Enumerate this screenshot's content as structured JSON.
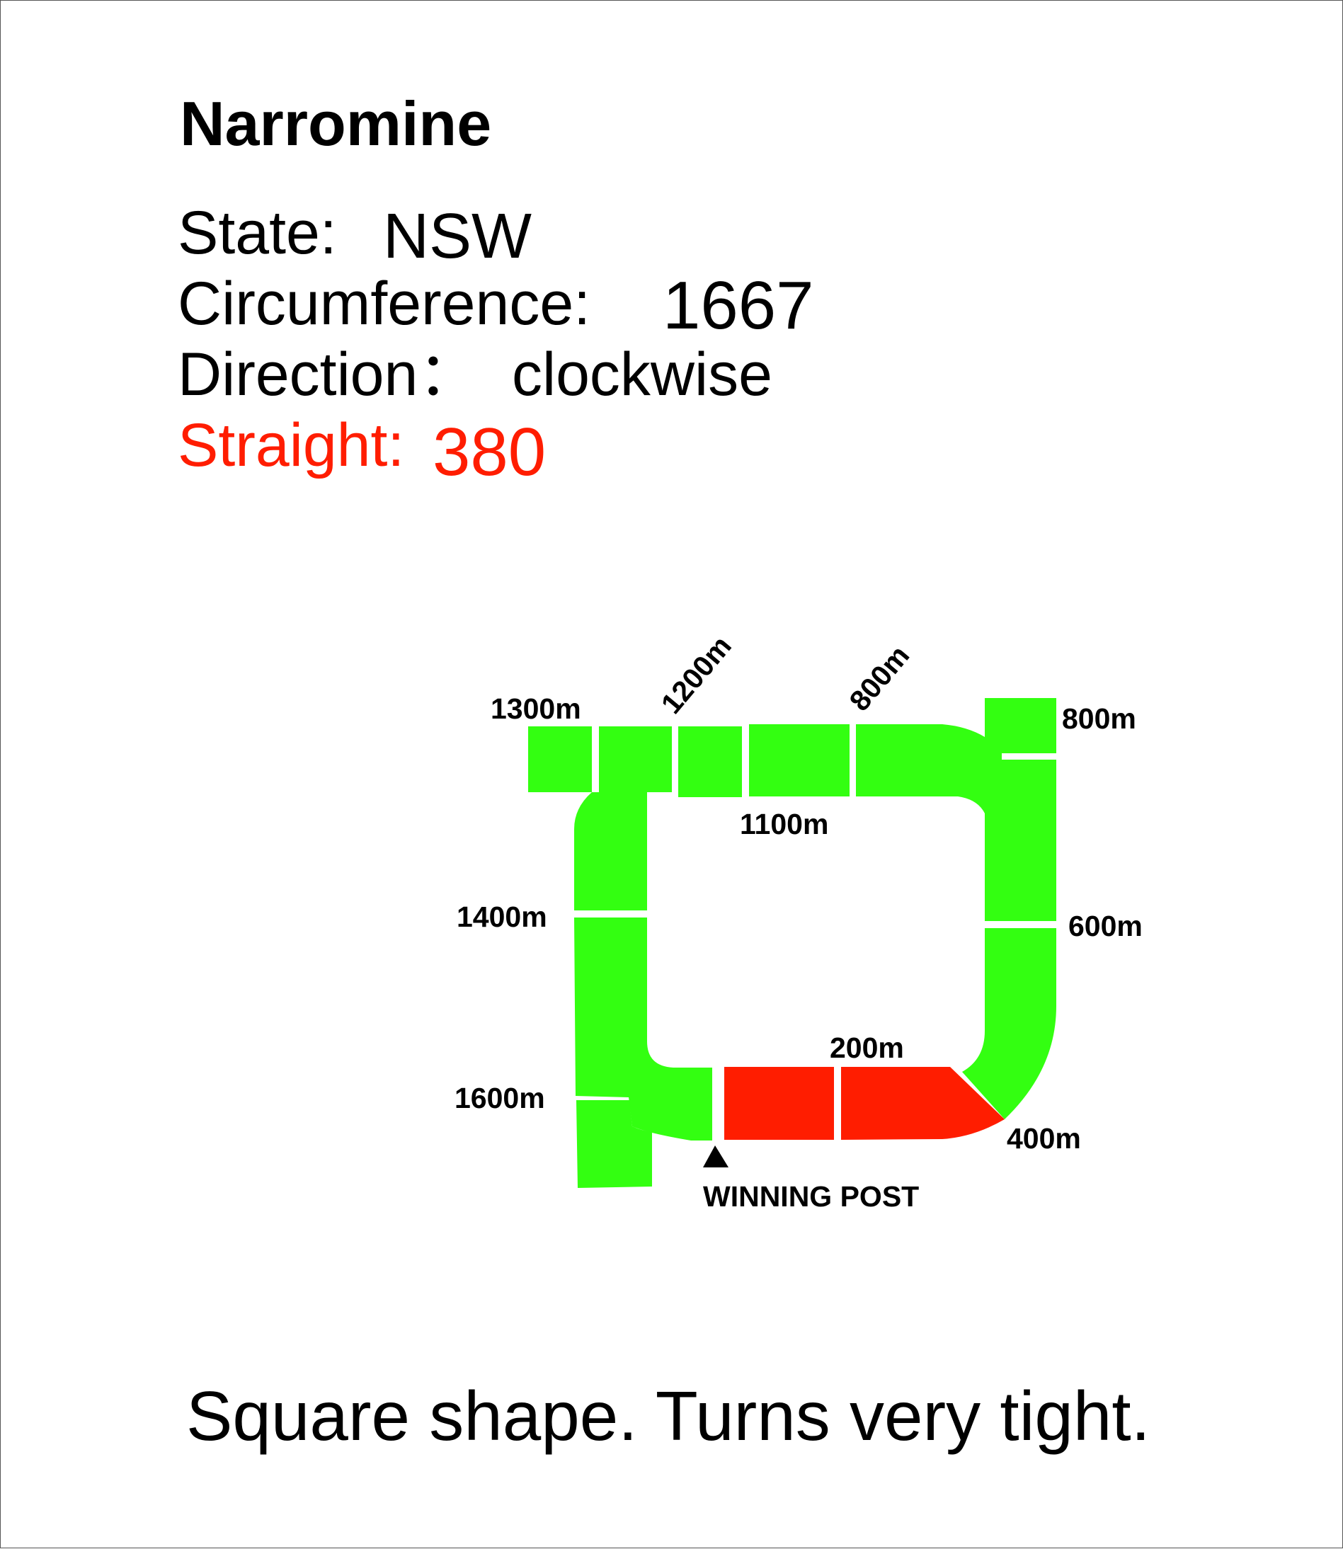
{
  "track": {
    "name": "Narromine",
    "state_label": "State:",
    "state_value": "NSW",
    "circumference_label": "Circumference:",
    "circumference_value": "1667",
    "direction_label": "Direction：",
    "direction_value": "clockwise",
    "straight_label": "Straight:",
    "straight_value": "380"
  },
  "diagram": {
    "markers": {
      "m1300": "1300m",
      "m1200": "1200m",
      "m800_top": "800m",
      "m800_right": "800m",
      "m1100": "1100m",
      "m1400": "1400m",
      "m600": "600m",
      "m200": "200m",
      "m1600": "1600m",
      "m400": "400m"
    },
    "winning_post": "WINNING POST"
  },
  "note": "Square shape. Turns very tight.",
  "colors": {
    "track": "#33ff11",
    "straight": "#ff1d00",
    "highlight_text": "#ff1d00",
    "text": "#000000"
  }
}
